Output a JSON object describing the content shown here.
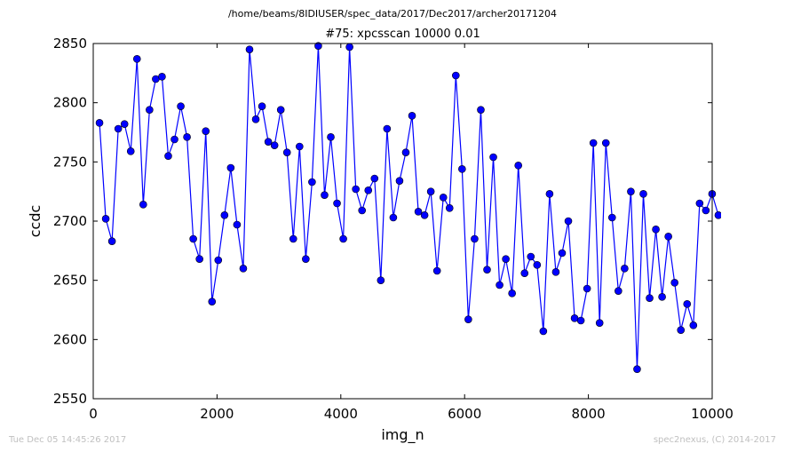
{
  "header": {
    "path": "/home/beams/8IDIUSER/spec_data/2017/Dec2017/archer20171204"
  },
  "footer": {
    "timestamp": "Tue Dec 05 14:45:26 2017",
    "credit": "spec2nexus, (C) 2014-2017"
  },
  "chart_data": {
    "type": "line",
    "title": "#75: xpcsscan 10000 0.01",
    "xlabel": "img_n",
    "ylabel": "ccdc",
    "xlim": [
      0,
      10000
    ],
    "ylim": [
      2550,
      2850
    ],
    "xticks": [
      0,
      2000,
      4000,
      6000,
      8000,
      10000
    ],
    "yticks": [
      2550,
      2600,
      2650,
      2700,
      2750,
      2800,
      2850
    ],
    "grid": false,
    "line_color": "#0000ff",
    "marker_color": "#0000ff",
    "marker": "circle",
    "series": [
      {
        "x": [
          101,
          202,
          303,
          404,
          505,
          606,
          707,
          808,
          909,
          1010,
          1111,
          1212,
          1313,
          1414,
          1515,
          1616,
          1717,
          1818,
          1919,
          2020,
          2121,
          2222,
          2323,
          2424,
          2525,
          2626,
          2727,
          2828,
          2929,
          3030,
          3131,
          3232,
          3333,
          3434,
          3535,
          3636,
          3737,
          3838,
          3939,
          4040,
          4141,
          4242,
          4343,
          4444,
          4545,
          4646,
          4747,
          4848,
          4949,
          5050,
          5151,
          5252,
          5353,
          5454,
          5555,
          5656,
          5757,
          5858,
          5959,
          6060,
          6161,
          6262,
          6363,
          6464,
          6565,
          6666,
          6767,
          6868,
          6969,
          7070,
          7171,
          7272,
          7373,
          7474,
          7575,
          7676,
          7777,
          7878,
          7979,
          8080,
          8181,
          8282,
          8383,
          8484,
          8585,
          8686,
          8787,
          8888,
          8989,
          9090,
          9191,
          9292,
          9393,
          9494,
          9595,
          9696,
          9797,
          9898,
          9999,
          10100
        ],
        "y": [
          2783,
          2702,
          2683,
          2778,
          2782,
          2759,
          2837,
          2714,
          2794,
          2820,
          2822,
          2755,
          2769,
          2797,
          2771,
          2685,
          2668,
          2776,
          2632,
          2667,
          2705,
          2745,
          2697,
          2660,
          2845,
          2786,
          2797,
          2767,
          2764,
          2794,
          2758,
          2685,
          2763,
          2668,
          2733,
          2848,
          2722,
          2771,
          2715,
          2685,
          2847,
          2727,
          2709,
          2726,
          2736,
          2650,
          2778,
          2703,
          2734,
          2758,
          2789,
          2708,
          2705,
          2725,
          2658,
          2720,
          2711,
          2823,
          2744,
          2617,
          2685,
          2794,
          2659,
          2754,
          2646,
          2668,
          2639,
          2747,
          2656,
          2670,
          2663,
          2607,
          2723,
          2657,
          2673,
          2700,
          2618,
          2616,
          2643,
          2766,
          2614,
          2766,
          2703,
          2641,
          2660,
          2725,
          2575,
          2723,
          2635,
          2693,
          2636,
          2687,
          2648,
          2608,
          2630,
          2612,
          2715,
          2709,
          2723,
          2705
        ]
      }
    ]
  }
}
